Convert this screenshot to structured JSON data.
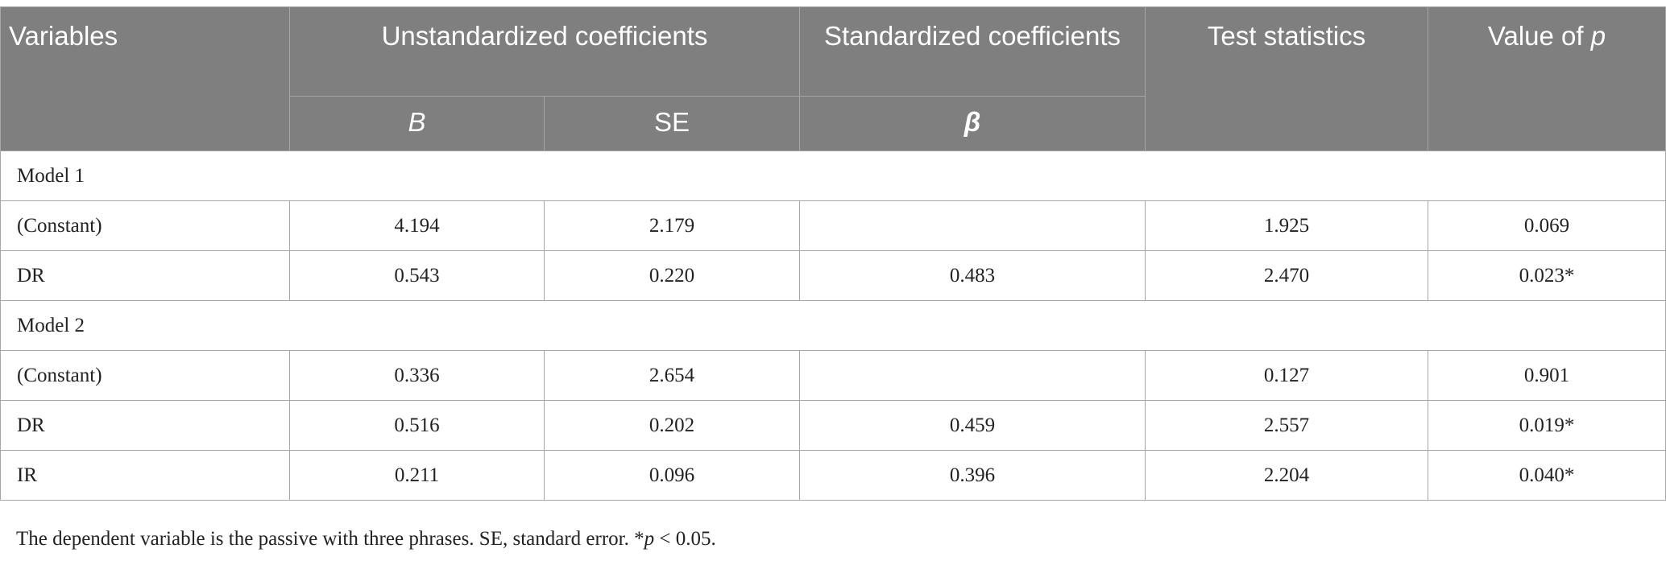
{
  "table": {
    "headers": {
      "variables": "Variables",
      "unstandardized": "Unstandardized coefficients",
      "standardized": "Standardized coefficients",
      "test_statistics": "Test statistics",
      "value_of_p_prefix": "Value of ",
      "value_of_p_var": "p",
      "b": "B",
      "se": "SE",
      "beta": "β"
    },
    "model1": {
      "label": "Model 1",
      "rows": [
        {
          "variable": "(Constant)",
          "b": "4.194",
          "se": "2.179",
          "beta": "",
          "t": "1.925",
          "p": "0.069"
        },
        {
          "variable": "DR",
          "b": "0.543",
          "se": "0.220",
          "beta": "0.483",
          "t": "2.470",
          "p": "0.023*"
        }
      ]
    },
    "model2": {
      "label": "Model 2",
      "rows": [
        {
          "variable": "(Constant)",
          "b": "0.336",
          "se": "2.654",
          "beta": "",
          "t": "0.127",
          "p": "0.901"
        },
        {
          "variable": "DR",
          "b": "0.516",
          "se": "0.202",
          "beta": "0.459",
          "t": "2.557",
          "p": "0.019*"
        },
        {
          "variable": "IR",
          "b": "0.211",
          "se": "0.096",
          "beta": "0.396",
          "t": "2.204",
          "p": "0.040*"
        }
      ]
    }
  },
  "footnote": {
    "text": "The dependent variable is the passive with three phrases. SE, standard error. *",
    "p_var": "p",
    "threshold": " < 0.05."
  },
  "colors": {
    "header_bg": "#7f7f7f",
    "header_text": "#ffffff",
    "border": "#a6a6a6",
    "body_text": "#222222"
  }
}
